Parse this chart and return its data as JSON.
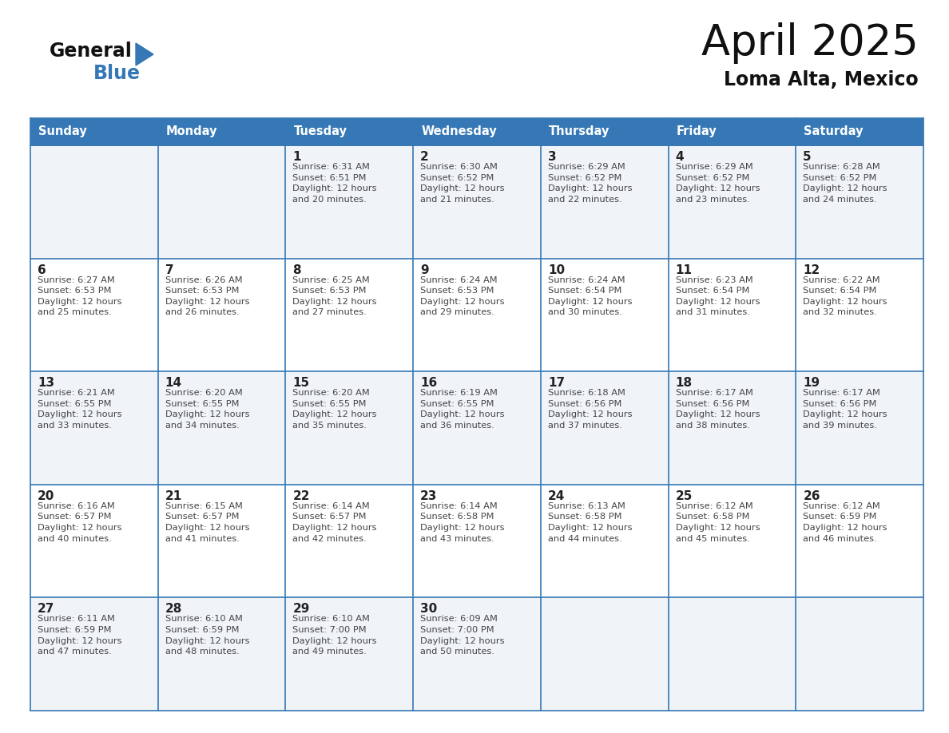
{
  "title": "April 2025",
  "subtitle": "Loma Alta, Mexico",
  "header_bg_color": "#3578b5",
  "header_text_color": "#ffffff",
  "cell_bg_even": "#f0f4f8",
  "cell_bg_odd": "#ffffff",
  "day_headers": [
    "Sunday",
    "Monday",
    "Tuesday",
    "Wednesday",
    "Thursday",
    "Friday",
    "Saturday"
  ],
  "grid_line_color": "#3578b5",
  "number_color": "#222222",
  "text_color": "#444444",
  "title_color": "#111111",
  "subtitle_color": "#111111",
  "calendar": [
    [
      {
        "day": null,
        "info": null
      },
      {
        "day": null,
        "info": null
      },
      {
        "day": 1,
        "info": "Sunrise: 6:31 AM\nSunset: 6:51 PM\nDaylight: 12 hours\nand 20 minutes."
      },
      {
        "day": 2,
        "info": "Sunrise: 6:30 AM\nSunset: 6:52 PM\nDaylight: 12 hours\nand 21 minutes."
      },
      {
        "day": 3,
        "info": "Sunrise: 6:29 AM\nSunset: 6:52 PM\nDaylight: 12 hours\nand 22 minutes."
      },
      {
        "day": 4,
        "info": "Sunrise: 6:29 AM\nSunset: 6:52 PM\nDaylight: 12 hours\nand 23 minutes."
      },
      {
        "day": 5,
        "info": "Sunrise: 6:28 AM\nSunset: 6:52 PM\nDaylight: 12 hours\nand 24 minutes."
      }
    ],
    [
      {
        "day": 6,
        "info": "Sunrise: 6:27 AM\nSunset: 6:53 PM\nDaylight: 12 hours\nand 25 minutes."
      },
      {
        "day": 7,
        "info": "Sunrise: 6:26 AM\nSunset: 6:53 PM\nDaylight: 12 hours\nand 26 minutes."
      },
      {
        "day": 8,
        "info": "Sunrise: 6:25 AM\nSunset: 6:53 PM\nDaylight: 12 hours\nand 27 minutes."
      },
      {
        "day": 9,
        "info": "Sunrise: 6:24 AM\nSunset: 6:53 PM\nDaylight: 12 hours\nand 29 minutes."
      },
      {
        "day": 10,
        "info": "Sunrise: 6:24 AM\nSunset: 6:54 PM\nDaylight: 12 hours\nand 30 minutes."
      },
      {
        "day": 11,
        "info": "Sunrise: 6:23 AM\nSunset: 6:54 PM\nDaylight: 12 hours\nand 31 minutes."
      },
      {
        "day": 12,
        "info": "Sunrise: 6:22 AM\nSunset: 6:54 PM\nDaylight: 12 hours\nand 32 minutes."
      }
    ],
    [
      {
        "day": 13,
        "info": "Sunrise: 6:21 AM\nSunset: 6:55 PM\nDaylight: 12 hours\nand 33 minutes."
      },
      {
        "day": 14,
        "info": "Sunrise: 6:20 AM\nSunset: 6:55 PM\nDaylight: 12 hours\nand 34 minutes."
      },
      {
        "day": 15,
        "info": "Sunrise: 6:20 AM\nSunset: 6:55 PM\nDaylight: 12 hours\nand 35 minutes."
      },
      {
        "day": 16,
        "info": "Sunrise: 6:19 AM\nSunset: 6:55 PM\nDaylight: 12 hours\nand 36 minutes."
      },
      {
        "day": 17,
        "info": "Sunrise: 6:18 AM\nSunset: 6:56 PM\nDaylight: 12 hours\nand 37 minutes."
      },
      {
        "day": 18,
        "info": "Sunrise: 6:17 AM\nSunset: 6:56 PM\nDaylight: 12 hours\nand 38 minutes."
      },
      {
        "day": 19,
        "info": "Sunrise: 6:17 AM\nSunset: 6:56 PM\nDaylight: 12 hours\nand 39 minutes."
      }
    ],
    [
      {
        "day": 20,
        "info": "Sunrise: 6:16 AM\nSunset: 6:57 PM\nDaylight: 12 hours\nand 40 minutes."
      },
      {
        "day": 21,
        "info": "Sunrise: 6:15 AM\nSunset: 6:57 PM\nDaylight: 12 hours\nand 41 minutes."
      },
      {
        "day": 22,
        "info": "Sunrise: 6:14 AM\nSunset: 6:57 PM\nDaylight: 12 hours\nand 42 minutes."
      },
      {
        "day": 23,
        "info": "Sunrise: 6:14 AM\nSunset: 6:58 PM\nDaylight: 12 hours\nand 43 minutes."
      },
      {
        "day": 24,
        "info": "Sunrise: 6:13 AM\nSunset: 6:58 PM\nDaylight: 12 hours\nand 44 minutes."
      },
      {
        "day": 25,
        "info": "Sunrise: 6:12 AM\nSunset: 6:58 PM\nDaylight: 12 hours\nand 45 minutes."
      },
      {
        "day": 26,
        "info": "Sunrise: 6:12 AM\nSunset: 6:59 PM\nDaylight: 12 hours\nand 46 minutes."
      }
    ],
    [
      {
        "day": 27,
        "info": "Sunrise: 6:11 AM\nSunset: 6:59 PM\nDaylight: 12 hours\nand 47 minutes."
      },
      {
        "day": 28,
        "info": "Sunrise: 6:10 AM\nSunset: 6:59 PM\nDaylight: 12 hours\nand 48 minutes."
      },
      {
        "day": 29,
        "info": "Sunrise: 6:10 AM\nSunset: 7:00 PM\nDaylight: 12 hours\nand 49 minutes."
      },
      {
        "day": 30,
        "info": "Sunrise: 6:09 AM\nSunset: 7:00 PM\nDaylight: 12 hours\nand 50 minutes."
      },
      {
        "day": null,
        "info": null
      },
      {
        "day": null,
        "info": null
      },
      {
        "day": null,
        "info": null
      }
    ]
  ],
  "fig_width": 11.88,
  "fig_height": 9.18,
  "dpi": 100,
  "logo_general_color": "#111111",
  "logo_blue_color": "#3578b5",
  "logo_triangle_color": "#3578b5"
}
